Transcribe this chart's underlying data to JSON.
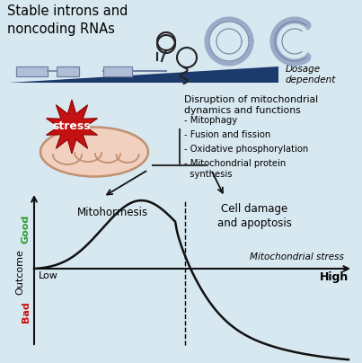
{
  "bg_color": "#d8e8f0",
  "fig_w": 4.03,
  "fig_h": 4.04,
  "dpi": 100,
  "title": "Stable introns and\nnoncoding RNAs",
  "dosage_text": "Dosage\ndependent",
  "disruption_title": "Disruption of mitochondrial\ndynamics and functions",
  "bullets": [
    "- Mitophagy",
    "- Fusion and fission",
    "- Oxidative phosphorylation",
    "- Mitochondrial protein\n  synthesis"
  ],
  "mitohormesis_label": "Mitohormesis",
  "cell_damage_label": "Cell damage\nand apoptosis",
  "mito_stress_label": "Mitochondrial stress",
  "outcome_label": "Outcome",
  "good_label": "Good",
  "bad_label": "Bad",
  "low_label": "Low",
  "high_label": "High",
  "stress_label": "stress",
  "triangle_color": "#1c3a6b",
  "gene_box_color": "#b0bed8",
  "gene_box_edge": "#7080a0",
  "lariat_color": "#222222",
  "ring_color": "#9aaac8",
  "stress_color": "#c41212",
  "stress_edge": "#8b0000",
  "mito_fill": "#f2d0c0",
  "mito_edge": "#c09070",
  "cristae_color": "#c09070",
  "curve_color": "#111111",
  "good_color": "#2e9e2e",
  "bad_color": "#cc1111",
  "sep_line_color": "#333333",
  "arrow_color": "#111111",
  "axis_color": "#111111"
}
